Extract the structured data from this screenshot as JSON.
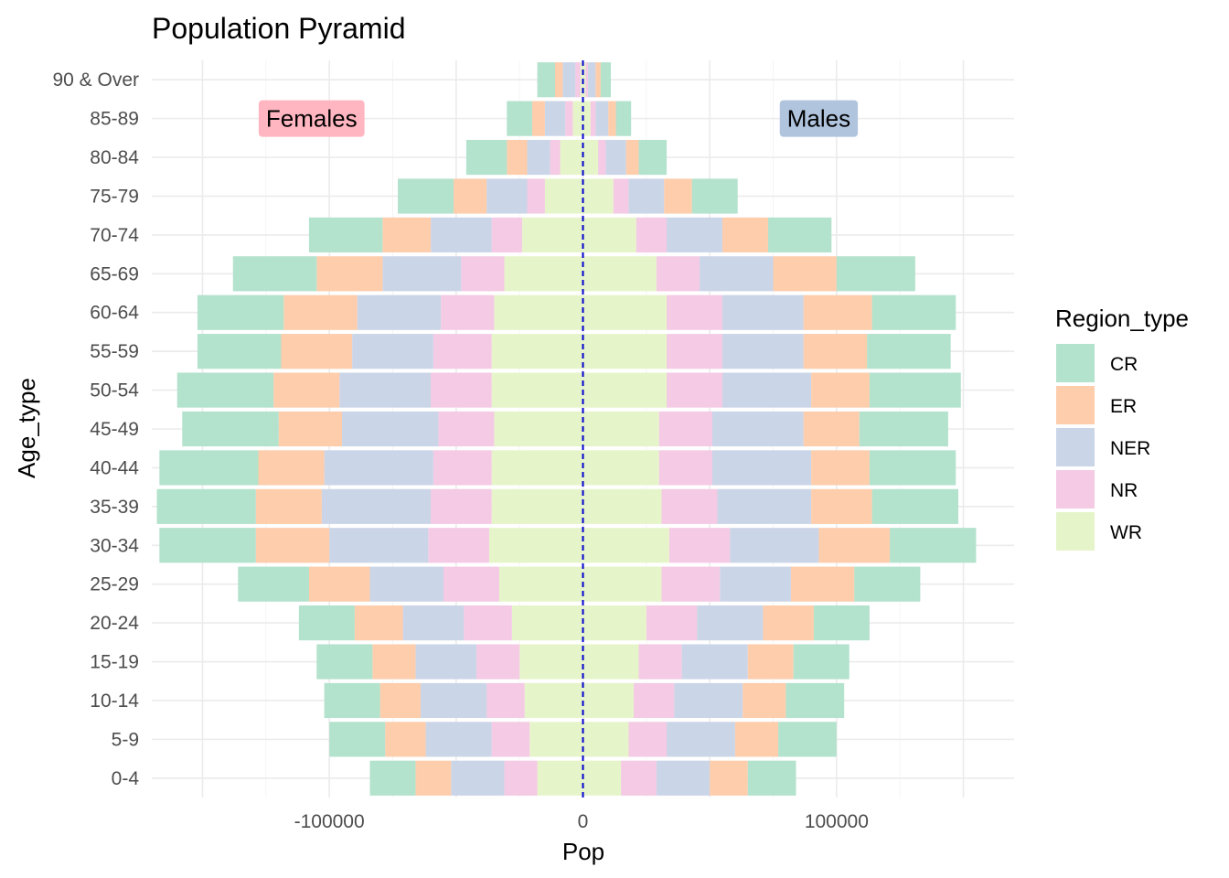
{
  "chart_data": {
    "type": "bar",
    "orientation": "horizontal",
    "stacked": true,
    "title": "Population Pyramid",
    "xlabel": "Pop",
    "ylabel": "Age_type",
    "xlim": [
      -170000,
      170000
    ],
    "xticks": [
      -100000,
      0,
      100000
    ],
    "xtick_labels": [
      "-100000",
      "0",
      "100000"
    ],
    "grid": true,
    "legend": {
      "title": "Region_type",
      "position": "right"
    },
    "reference_line": {
      "x": 0,
      "style": "dashed",
      "color": "#0000cd"
    },
    "annotations": [
      {
        "label": "Females",
        "x": -107000,
        "age": "85-89",
        "fill": "#ffb6c1"
      },
      {
        "label": "Males",
        "x": 93000,
        "age": "85-89",
        "fill": "#b0c4de"
      }
    ],
    "categories": [
      "0-4",
      "5-9",
      "10-14",
      "15-19",
      "20-24",
      "25-29",
      "30-34",
      "35-39",
      "40-44",
      "45-49",
      "50-54",
      "55-59",
      "60-64",
      "65-69",
      "70-74",
      "75-79",
      "80-84",
      "85-89",
      "90 & Over"
    ],
    "stack_order": [
      "WR",
      "NR",
      "NER",
      "ER",
      "CR"
    ],
    "colors": {
      "CR": "#b3e2cd",
      "ER": "#fdcdac",
      "NER": "#cbd5e8",
      "NR": "#f4cae4",
      "WR": "#e6f5c9"
    },
    "series": [
      {
        "name": "CR",
        "sex": "Females",
        "values": [
          -18000,
          -22000,
          -22000,
          -22000,
          -22000,
          -28000,
          -38000,
          -39000,
          -39000,
          -38000,
          -38000,
          -33000,
          -34000,
          -33000,
          -29000,
          -22000,
          -16000,
          -10000,
          -7000
        ]
      },
      {
        "name": "ER",
        "sex": "Females",
        "values": [
          -14000,
          -16000,
          -16000,
          -17000,
          -19000,
          -24000,
          -29000,
          -26000,
          -26000,
          -25000,
          -26000,
          -28000,
          -29000,
          -26000,
          -19000,
          -13000,
          -8000,
          -5000,
          -3000
        ]
      },
      {
        "name": "NER",
        "sex": "Females",
        "values": [
          -21000,
          -26000,
          -26000,
          -24000,
          -24000,
          -29000,
          -39000,
          -43000,
          -43000,
          -38000,
          -36000,
          -32000,
          -33000,
          -31000,
          -24000,
          -16000,
          -9000,
          -8000,
          -5000
        ]
      },
      {
        "name": "NR",
        "sex": "Females",
        "values": [
          -13000,
          -15000,
          -15000,
          -17000,
          -19000,
          -22000,
          -24000,
          -24000,
          -23000,
          -22000,
          -24000,
          -23000,
          -21000,
          -17000,
          -12000,
          -7000,
          -4000,
          -3000,
          -2000
        ]
      },
      {
        "name": "WR",
        "sex": "Females",
        "values": [
          -18000,
          -21000,
          -23000,
          -25000,
          -28000,
          -33000,
          -37000,
          -36000,
          -36000,
          -35000,
          -36000,
          -36000,
          -35000,
          -31000,
          -24000,
          -15000,
          -9000,
          -4000,
          -1000
        ]
      },
      {
        "name": "CR",
        "sex": "Males",
        "values": [
          19000,
          23000,
          23000,
          22000,
          22000,
          26000,
          34000,
          34000,
          34000,
          35000,
          36000,
          33000,
          33000,
          31000,
          25000,
          18000,
          11000,
          6000,
          4000
        ]
      },
      {
        "name": "ER",
        "sex": "Males",
        "values": [
          15000,
          17000,
          17000,
          18000,
          20000,
          25000,
          28000,
          24000,
          23000,
          22000,
          23000,
          25000,
          27000,
          25000,
          18000,
          11000,
          5000,
          3000,
          2000
        ]
      },
      {
        "name": "NER",
        "sex": "Males",
        "values": [
          21000,
          27000,
          27000,
          26000,
          26000,
          28000,
          35000,
          37000,
          39000,
          36000,
          35000,
          32000,
          32000,
          29000,
          22000,
          14000,
          8000,
          5000,
          3000
        ]
      },
      {
        "name": "NR",
        "sex": "Males",
        "values": [
          14000,
          15000,
          16000,
          17000,
          20000,
          23000,
          24000,
          22000,
          21000,
          21000,
          22000,
          22000,
          22000,
          17000,
          12000,
          6000,
          3000,
          2000,
          1000
        ]
      },
      {
        "name": "WR",
        "sex": "Males",
        "values": [
          15000,
          18000,
          20000,
          22000,
          25000,
          31000,
          34000,
          31000,
          30000,
          30000,
          33000,
          33000,
          33000,
          29000,
          21000,
          12000,
          6000,
          3000,
          1000
        ]
      }
    ]
  }
}
